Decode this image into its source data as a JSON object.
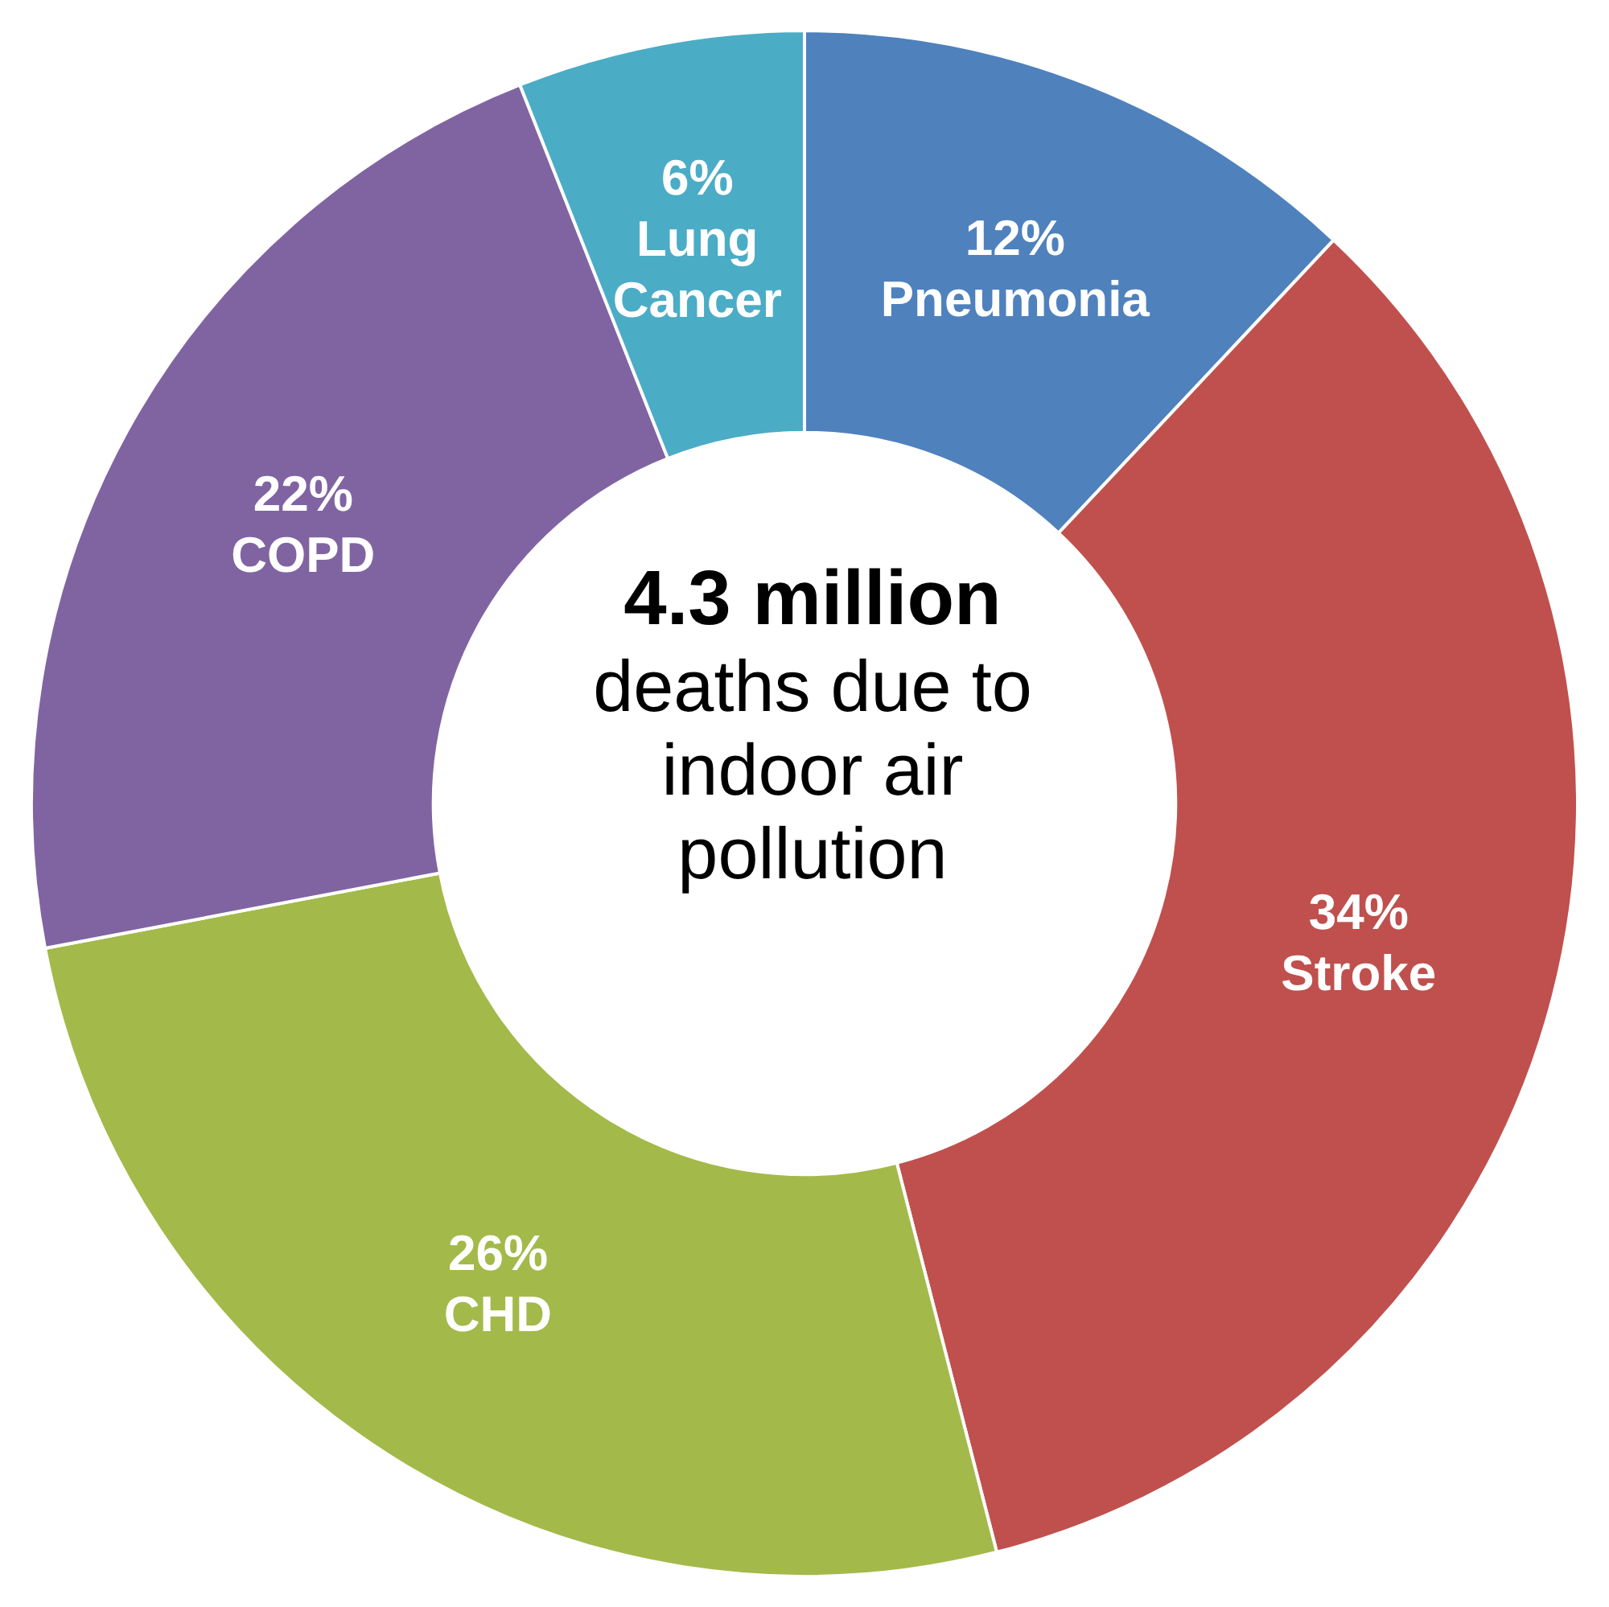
{
  "chart_data": {
    "type": "donut",
    "title": "4.3 million",
    "subtitle": "deaths due to indoor air pollution",
    "categories": [
      "Pneumonia",
      "Stroke",
      "CHD",
      "COPD",
      "Lung Cancer"
    ],
    "values": [
      12,
      34,
      26,
      22,
      6
    ],
    "value_labels": [
      "12%",
      "34%",
      "26%",
      "22%",
      "6%"
    ],
    "colors": [
      "#4f81bd",
      "#c0504d",
      "#a3b94a",
      "#8064a2",
      "#4bacc6"
    ],
    "legend": false
  }
}
